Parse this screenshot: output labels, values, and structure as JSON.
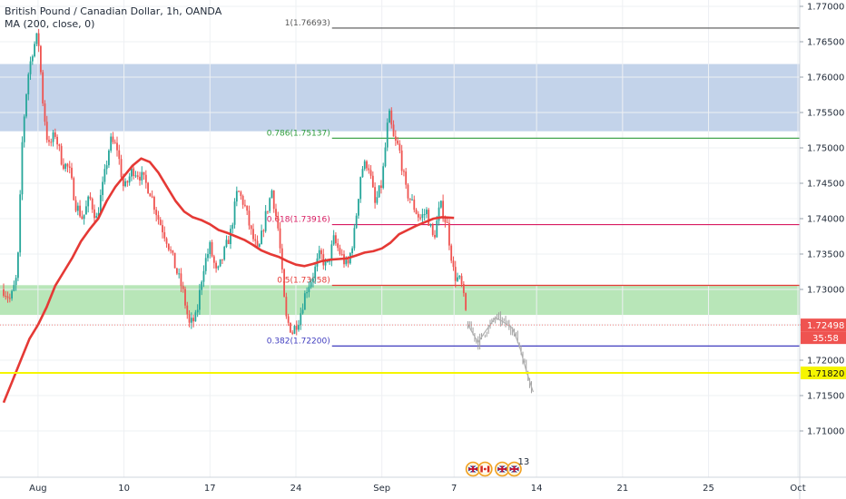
{
  "header": {
    "title": "British Pound / Canadian Dollar, 1h, OANDA",
    "indicator": "MA (200, close, 0)"
  },
  "colors": {
    "up": "#26a69a",
    "down": "#ef5350",
    "ma": "#e53935",
    "resistance_zone": "#c3d3ea",
    "support_zone": "#b8e6b8",
    "highlight_line": "#f5f500",
    "fib_100": "#555555",
    "fib_786": "#2e9c3a",
    "fib_618": "#d81b60",
    "fib_500": "#e53935",
    "fib_382": "#3f3cbf",
    "projection": "#9e9e9e",
    "current_price_bg": "#ef5350",
    "highlight_price_bg": "#f5f500"
  },
  "chart_data": {
    "type": "candlestick",
    "symbol": "GBPCAD",
    "timeframe": "1h",
    "y_range": [
      1.7065,
      1.7715
    ],
    "x_range": [
      0.0,
      42.5
    ],
    "x_ticks": [
      {
        "x": 2.0,
        "label": "Aug"
      },
      {
        "x": 7.0,
        "label": "10"
      },
      {
        "x": 12.0,
        "label": "17"
      },
      {
        "x": 17.0,
        "label": "24"
      },
      {
        "x": 22.0,
        "label": "Sep"
      },
      {
        "x": 26.2,
        "label": "7"
      },
      {
        "x": 31.0,
        "label": "14"
      },
      {
        "x": 36.0,
        "label": "21"
      },
      {
        "x": 41.0,
        "label": "25"
      },
      {
        "x": 46.2,
        "label": "Oct"
      }
    ],
    "y_ticks": [
      "1.77000",
      "1.76500",
      "1.76000",
      "1.75500",
      "1.75000",
      "1.74500",
      "1.74000",
      "1.73500",
      "1.73000",
      "1.72500",
      "1.72000",
      "1.71500",
      "1.71000"
    ],
    "price_path": [
      [
        0.0,
        1.73
      ],
      [
        0.4,
        1.7285
      ],
      [
        0.8,
        1.732
      ],
      [
        1.1,
        1.752
      ],
      [
        1.4,
        1.76
      ],
      [
        1.7,
        1.764
      ],
      [
        2.0,
        1.766
      ],
      [
        2.3,
        1.756
      ],
      [
        2.6,
        1.75
      ],
      [
        3.0,
        1.752
      ],
      [
        3.4,
        1.748
      ],
      [
        3.8,
        1.747
      ],
      [
        4.2,
        1.742
      ],
      [
        4.6,
        1.74
      ],
      [
        5.0,
        1.743
      ],
      [
        5.4,
        1.74
      ],
      [
        5.8,
        1.745
      ],
      [
        6.2,
        1.751
      ],
      [
        6.6,
        1.75
      ],
      [
        7.0,
        1.744
      ],
      [
        7.5,
        1.747
      ],
      [
        8.0,
        1.746
      ],
      [
        8.5,
        1.744
      ],
      [
        9.0,
        1.74
      ],
      [
        9.5,
        1.737
      ],
      [
        10.0,
        1.733
      ],
      [
        10.4,
        1.73
      ],
      [
        10.8,
        1.725
      ],
      [
        11.2,
        1.726
      ],
      [
        11.6,
        1.733
      ],
      [
        12.0,
        1.736
      ],
      [
        12.4,
        1.732
      ],
      [
        12.8,
        1.735
      ],
      [
        13.2,
        1.738
      ],
      [
        13.6,
        1.744
      ],
      [
        14.0,
        1.742
      ],
      [
        14.4,
        1.738
      ],
      [
        14.8,
        1.735
      ],
      [
        15.2,
        1.74
      ],
      [
        15.6,
        1.744
      ],
      [
        16.0,
        1.738
      ],
      [
        16.4,
        1.726
      ],
      [
        16.8,
        1.724
      ],
      [
        17.2,
        1.726
      ],
      [
        17.6,
        1.73
      ],
      [
        18.0,
        1.732
      ],
      [
        18.4,
        1.735
      ],
      [
        18.8,
        1.733
      ],
      [
        19.2,
        1.737
      ],
      [
        19.6,
        1.735
      ],
      [
        20.0,
        1.733
      ],
      [
        20.4,
        1.738
      ],
      [
        20.8,
        1.747
      ],
      [
        21.2,
        1.748
      ],
      [
        21.6,
        1.742
      ],
      [
        22.0,
        1.745
      ],
      [
        22.4,
        1.755
      ],
      [
        22.7,
        1.751
      ],
      [
        23.0,
        1.75
      ],
      [
        23.4,
        1.744
      ],
      [
        23.8,
        1.742
      ],
      [
        24.2,
        1.74
      ],
      [
        24.6,
        1.741
      ],
      [
        25.0,
        1.737
      ],
      [
        25.4,
        1.742
      ],
      [
        25.8,
        1.739
      ],
      [
        26.2,
        1.732
      ],
      [
        26.6,
        1.731
      ],
      [
        27.0,
        1.725
      ]
    ],
    "ma_200": [
      [
        0.0,
        1.714
      ],
      [
        0.5,
        1.717
      ],
      [
        1.0,
        1.72
      ],
      [
        1.5,
        1.723
      ],
      [
        2.0,
        1.725
      ],
      [
        2.5,
        1.7275
      ],
      [
        3.0,
        1.7305
      ],
      [
        3.5,
        1.7325
      ],
      [
        4.0,
        1.7345
      ],
      [
        4.5,
        1.7368
      ],
      [
        5.0,
        1.7385
      ],
      [
        5.5,
        1.74
      ],
      [
        6.0,
        1.7425
      ],
      [
        6.5,
        1.7445
      ],
      [
        7.0,
        1.746
      ],
      [
        7.5,
        1.7475
      ],
      [
        8.0,
        1.7485
      ],
      [
        8.5,
        1.748
      ],
      [
        9.0,
        1.7465
      ],
      [
        9.5,
        1.7445
      ],
      [
        10.0,
        1.7425
      ],
      [
        10.5,
        1.741
      ],
      [
        11.0,
        1.7402
      ],
      [
        11.5,
        1.7398
      ],
      [
        12.0,
        1.7392
      ],
      [
        12.5,
        1.7384
      ],
      [
        13.0,
        1.738
      ],
      [
        13.5,
        1.7375
      ],
      [
        14.0,
        1.737
      ],
      [
        14.5,
        1.7363
      ],
      [
        15.0,
        1.7355
      ],
      [
        15.5,
        1.735
      ],
      [
        16.0,
        1.7346
      ],
      [
        16.5,
        1.734
      ],
      [
        17.0,
        1.7335
      ],
      [
        17.5,
        1.7333
      ],
      [
        18.0,
        1.7336
      ],
      [
        18.5,
        1.734
      ],
      [
        19.0,
        1.7342
      ],
      [
        19.5,
        1.7343
      ],
      [
        20.0,
        1.7344
      ],
      [
        20.5,
        1.7348
      ],
      [
        21.0,
        1.7352
      ],
      [
        21.5,
        1.7354
      ],
      [
        22.0,
        1.7358
      ],
      [
        22.5,
        1.7366
      ],
      [
        23.0,
        1.7378
      ],
      [
        23.5,
        1.7384
      ],
      [
        24.0,
        1.739
      ],
      [
        24.5,
        1.7395
      ],
      [
        25.0,
        1.74
      ],
      [
        25.5,
        1.7402
      ],
      [
        26.2,
        1.7401
      ]
    ],
    "projection_path": [
      [
        27.0,
        1.725
      ],
      [
        27.6,
        1.7225
      ],
      [
        28.0,
        1.724
      ],
      [
        28.6,
        1.726
      ],
      [
        29.0,
        1.7255
      ],
      [
        29.6,
        1.7245
      ],
      [
        30.0,
        1.722
      ],
      [
        30.4,
        1.7185
      ],
      [
        30.8,
        1.7155
      ]
    ],
    "zones": [
      {
        "name": "resistance",
        "y_low": 1.75235,
        "y_high": 1.76185
      },
      {
        "name": "support",
        "y_low": 1.7264,
        "y_high": 1.7306
      }
    ],
    "horizontal_line": 1.7182,
    "fib_levels": [
      {
        "label": "1(1.76693)",
        "value": 1.76693,
        "color_key": "fib_100"
      },
      {
        "label": "0.786(1.75137)",
        "value": 1.75137,
        "color_key": "fib_786"
      },
      {
        "label": "0.618(1.73916)",
        "value": 1.73916,
        "color_key": "fib_618"
      },
      {
        "label": "0.5(1.73058)",
        "value": 1.73058,
        "color_key": "fib_500"
      },
      {
        "label": "0.382(1.72200)",
        "value": 1.722,
        "color_key": "fib_382"
      }
    ],
    "fib_start_x": 19.1,
    "current_price": {
      "value": 1.72498,
      "label": "1.72498",
      "countdown": "35:58"
    },
    "highlight_price": {
      "value": 1.7182,
      "label": "1.71820"
    },
    "event_markers": [
      {
        "x": 27.3,
        "flag": "gb"
      },
      {
        "x": 28.0,
        "flag": "ca"
      },
      {
        "x": 29.0,
        "flag": "gb"
      },
      {
        "x": 29.7,
        "flag": "gb",
        "count": "13"
      }
    ]
  }
}
